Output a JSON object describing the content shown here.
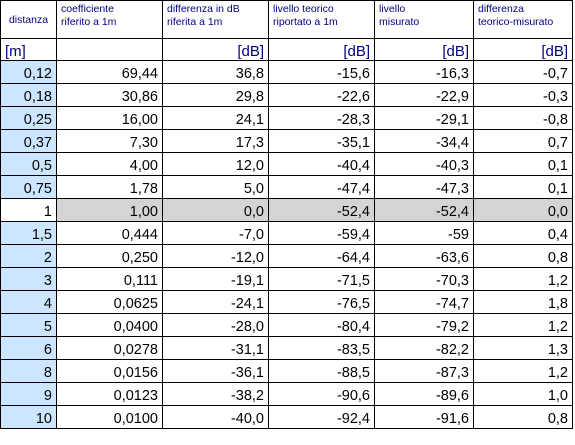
{
  "headers": {
    "distance": "distanza",
    "coef_l1": "coefficiente",
    "coef_l2": "riferito a 1m",
    "diff_l1": "differenza in dB",
    "diff_l2": "riferita a 1m",
    "theo_l1": "livello teorico",
    "theo_l2": "riportato a 1m",
    "meas_l1": "livello",
    "meas_l2": "misurato",
    "dtm_l1": "differenza",
    "dtm_l2": "teorico-misurato"
  },
  "units": {
    "distance": "[m]",
    "coef": "",
    "diff": "[dB]",
    "theo": "[dB]",
    "meas": "[dB]",
    "dtm": "[dB]"
  },
  "rows": [
    {
      "distance": "0,12",
      "coef": "69,44",
      "diff": "36,8",
      "theo": "-15,6",
      "meas": "-16,3",
      "dtm": "-0,7"
    },
    {
      "distance": "0,18",
      "coef": "30,86",
      "diff": "29,8",
      "theo": "-22,6",
      "meas": "-22,9",
      "dtm": "-0,3"
    },
    {
      "distance": "0,25",
      "coef": "16,00",
      "diff": "24,1",
      "theo": "-28,3",
      "meas": "-29,1",
      "dtm": "-0,8"
    },
    {
      "distance": "0,37",
      "coef": "7,30",
      "diff": "17,3",
      "theo": "-35,1",
      "meas": "-34,4",
      "dtm": "0,7"
    },
    {
      "distance": "0,5",
      "coef": "4,00",
      "diff": "12,0",
      "theo": "-40,4",
      "meas": "-40,3",
      "dtm": "0,1"
    },
    {
      "distance": "0,75",
      "coef": "1,78",
      "diff": "5,0",
      "theo": "-47,4",
      "meas": "-47,3",
      "dtm": "0,1"
    },
    {
      "distance": "1",
      "coef": "1,00",
      "diff": "0,0",
      "theo": "-52,4",
      "meas": "-52,4",
      "dtm": "0,0"
    },
    {
      "distance": "1,5",
      "coef": "0,444",
      "diff": "-7,0",
      "theo": "-59,4",
      "meas": "-59",
      "dtm": "0,4"
    },
    {
      "distance": "2",
      "coef": "0,250",
      "diff": "-12,0",
      "theo": "-64,4",
      "meas": "-63,6",
      "dtm": "0,8"
    },
    {
      "distance": "3",
      "coef": "0,111",
      "diff": "-19,1",
      "theo": "-71,5",
      "meas": "-70,3",
      "dtm": "1,2"
    },
    {
      "distance": "4",
      "coef": "0,0625",
      "diff": "-24,1",
      "theo": "-76,5",
      "meas": "-74,7",
      "dtm": "1,8"
    },
    {
      "distance": "5",
      "coef": "0,0400",
      "diff": "-28,0",
      "theo": "-80,4",
      "meas": "-79,2",
      "dtm": "1,2"
    },
    {
      "distance": "6",
      "coef": "0,0278",
      "diff": "-31,1",
      "theo": "-83,5",
      "meas": "-82,2",
      "dtm": "1,3"
    },
    {
      "distance": "8",
      "coef": "0,0156",
      "diff": "-36,1",
      "theo": "-88,5",
      "meas": "-87,3",
      "dtm": "1,2"
    },
    {
      "distance": "9",
      "coef": "0,0123",
      "diff": "-38,2",
      "theo": "-90,6",
      "meas": "-89,6",
      "dtm": "1,0"
    },
    {
      "distance": "10",
      "coef": "0,0100",
      "diff": "-40,0",
      "theo": "-92,4",
      "meas": "-91,6",
      "dtm": "0,8"
    }
  ],
  "colors": {
    "header_text": "#000080",
    "distance_column_fill": "#cce6ff",
    "reference_row_fill": "#d4d4d4",
    "grid_lines": "#000000"
  }
}
